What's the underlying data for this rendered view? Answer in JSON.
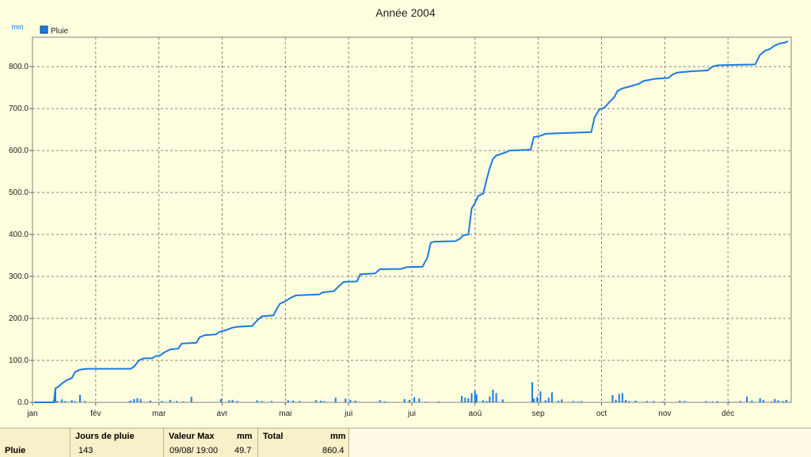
{
  "chart_data": {
    "type": "bar+line",
    "title": "Année 2004",
    "y_unit": "mm",
    "ylim": [
      0,
      870
    ],
    "y_ticks": [
      "0.0",
      "100.0",
      "200.0",
      "300.0",
      "400.0",
      "500.0",
      "600.0",
      "700.0",
      "800.0"
    ],
    "months": [
      "jan",
      "fév",
      "mar",
      "avr",
      "mai",
      "jui",
      "jui",
      "aoû",
      "sep",
      "oct",
      "nov",
      "déc"
    ],
    "grid": true,
    "legend": {
      "position": "top-left",
      "entries": [
        "Pluie"
      ]
    },
    "series": [
      {
        "name": "Pluie",
        "kind": "cumulative-line",
        "points": [
          [
            1,
            0
          ],
          [
            13,
            0
          ],
          [
            14,
            33
          ],
          [
            16,
            38
          ],
          [
            18,
            45
          ],
          [
            21,
            53
          ],
          [
            24,
            58
          ],
          [
            26,
            72
          ],
          [
            29,
            78
          ],
          [
            33,
            80
          ],
          [
            60,
            80
          ],
          [
            62,
            85
          ],
          [
            65,
            100
          ],
          [
            68,
            105
          ],
          [
            73,
            105
          ],
          [
            75,
            110
          ],
          [
            78,
            112
          ],
          [
            80,
            118
          ],
          [
            84,
            126
          ],
          [
            89,
            128
          ],
          [
            91,
            140
          ],
          [
            100,
            142
          ],
          [
            102,
            155
          ],
          [
            105,
            160
          ],
          [
            112,
            162
          ],
          [
            114,
            168
          ],
          [
            118,
            172
          ],
          [
            122,
            178
          ],
          [
            125,
            180
          ],
          [
            134,
            182
          ],
          [
            137,
            195
          ],
          [
            140,
            205
          ],
          [
            147,
            207
          ],
          [
            149,
            222
          ],
          [
            151,
            235
          ],
          [
            154,
            240
          ],
          [
            158,
            250
          ],
          [
            161,
            255
          ],
          [
            175,
            257
          ],
          [
            177,
            262
          ],
          [
            184,
            265
          ],
          [
            187,
            277
          ],
          [
            190,
            287
          ],
          [
            198,
            288
          ],
          [
            200,
            305
          ],
          [
            209,
            307
          ],
          [
            212,
            317
          ],
          [
            225,
            318
          ],
          [
            228,
            322
          ],
          [
            238,
            323
          ],
          [
            241,
            345
          ],
          [
            243,
            380
          ],
          [
            245,
            383
          ],
          [
            258,
            384
          ],
          [
            261,
            390
          ],
          [
            263,
            398
          ],
          [
            266,
            400
          ],
          [
            268,
            462
          ],
          [
            270,
            475
          ],
          [
            272,
            492
          ],
          [
            275,
            497
          ],
          [
            277,
            528
          ],
          [
            279,
            558
          ],
          [
            281,
            580
          ],
          [
            283,
            588
          ],
          [
            289,
            596
          ],
          [
            291,
            600
          ],
          [
            304,
            602
          ],
          [
            306,
            632
          ],
          [
            310,
            635
          ],
          [
            313,
            640
          ],
          [
            328,
            642
          ],
          [
            341,
            644
          ],
          [
            343,
            679
          ],
          [
            346,
            698
          ],
          [
            349,
            702
          ],
          [
            352,
            715
          ],
          [
            355,
            727
          ],
          [
            357,
            742
          ],
          [
            360,
            748
          ],
          [
            364,
            752
          ],
          [
            370,
            759
          ],
          [
            373,
            766
          ],
          [
            376,
            768
          ],
          [
            380,
            771
          ],
          [
            388,
            773
          ],
          [
            391,
            782
          ],
          [
            394,
            786
          ],
          [
            403,
            789
          ],
          [
            412,
            791
          ],
          [
            415,
            800
          ],
          [
            418,
            803
          ],
          [
            426,
            804
          ],
          [
            441,
            805
          ],
          [
            444,
            828
          ],
          [
            447,
            838
          ],
          [
            450,
            842
          ],
          [
            453,
            850
          ],
          [
            456,
            855
          ],
          [
            459,
            857
          ],
          [
            461,
            860.4
          ]
        ]
      },
      {
        "name": "Pluie",
        "kind": "daily-bars",
        "points": [
          [
            14,
            33
          ],
          [
            15,
            3
          ],
          [
            18,
            7
          ],
          [
            20,
            3
          ],
          [
            24,
            5
          ],
          [
            26,
            3
          ],
          [
            29,
            18
          ],
          [
            32,
            3
          ],
          [
            59,
            2
          ],
          [
            60,
            4
          ],
          [
            62,
            8
          ],
          [
            64,
            10
          ],
          [
            66,
            8
          ],
          [
            72,
            4
          ],
          [
            79,
            3
          ],
          [
            84,
            6
          ],
          [
            88,
            3
          ],
          [
            92,
            2
          ],
          [
            97,
            13
          ],
          [
            115,
            8
          ],
          [
            120,
            5
          ],
          [
            122,
            6
          ],
          [
            125,
            3
          ],
          [
            137,
            5
          ],
          [
            140,
            3
          ],
          [
            146,
            3
          ],
          [
            156,
            5
          ],
          [
            159,
            4
          ],
          [
            163,
            3
          ],
          [
            173,
            5
          ],
          [
            176,
            4
          ],
          [
            178,
            3
          ],
          [
            185,
            11
          ],
          [
            191,
            9
          ],
          [
            194,
            6
          ],
          [
            197,
            4
          ],
          [
            212,
            5
          ],
          [
            215,
            2
          ],
          [
            227,
            8
          ],
          [
            230,
            6
          ],
          [
            233,
            12
          ],
          [
            236,
            9
          ],
          [
            240,
            2
          ],
          [
            248,
            2
          ],
          [
            262,
            15
          ],
          [
            264,
            11
          ],
          [
            266,
            10
          ],
          [
            268,
            22
          ],
          [
            270,
            28
          ],
          [
            271,
            19
          ],
          [
            275,
            5
          ],
          [
            277,
            3
          ],
          [
            279,
            14
          ],
          [
            281,
            30
          ],
          [
            283,
            22
          ],
          [
            287,
            7
          ],
          [
            305,
            48
          ],
          [
            306,
            9
          ],
          [
            308,
            13
          ],
          [
            310,
            26
          ],
          [
            313,
            5
          ],
          [
            315,
            11
          ],
          [
            317,
            24
          ],
          [
            321,
            4
          ],
          [
            323,
            7
          ],
          [
            330,
            3
          ],
          [
            333,
            2
          ],
          [
            335,
            3
          ],
          [
            354,
            17
          ],
          [
            356,
            6
          ],
          [
            358,
            20
          ],
          [
            360,
            22
          ],
          [
            362,
            6
          ],
          [
            364,
            3
          ],
          [
            368,
            4
          ],
          [
            375,
            3
          ],
          [
            379,
            3
          ],
          [
            385,
            2
          ],
          [
            395,
            4
          ],
          [
            398,
            3
          ],
          [
            411,
            3
          ],
          [
            415,
            2
          ],
          [
            418,
            3
          ],
          [
            425,
            2
          ],
          [
            432,
            3
          ],
          [
            436,
            14
          ],
          [
            439,
            4
          ],
          [
            444,
            10
          ],
          [
            446,
            6
          ],
          [
            451,
            2
          ],
          [
            453,
            8
          ],
          [
            455,
            5
          ],
          [
            458,
            3
          ],
          [
            460,
            6
          ]
        ]
      }
    ]
  },
  "summary": {
    "row_label": "Pluie",
    "rain_days_header": "Jours de pluie",
    "rain_days_value": "143",
    "max_header": "Valeur Max",
    "max_unit": "mm",
    "max_date": "09/08/  19:00",
    "max_value": "49.7",
    "total_header": "Total",
    "total_unit": "mm",
    "total_value": "860.4"
  },
  "colors": {
    "background": "#ffffe0",
    "series": "#1a7adf",
    "grid": "#808080"
  }
}
